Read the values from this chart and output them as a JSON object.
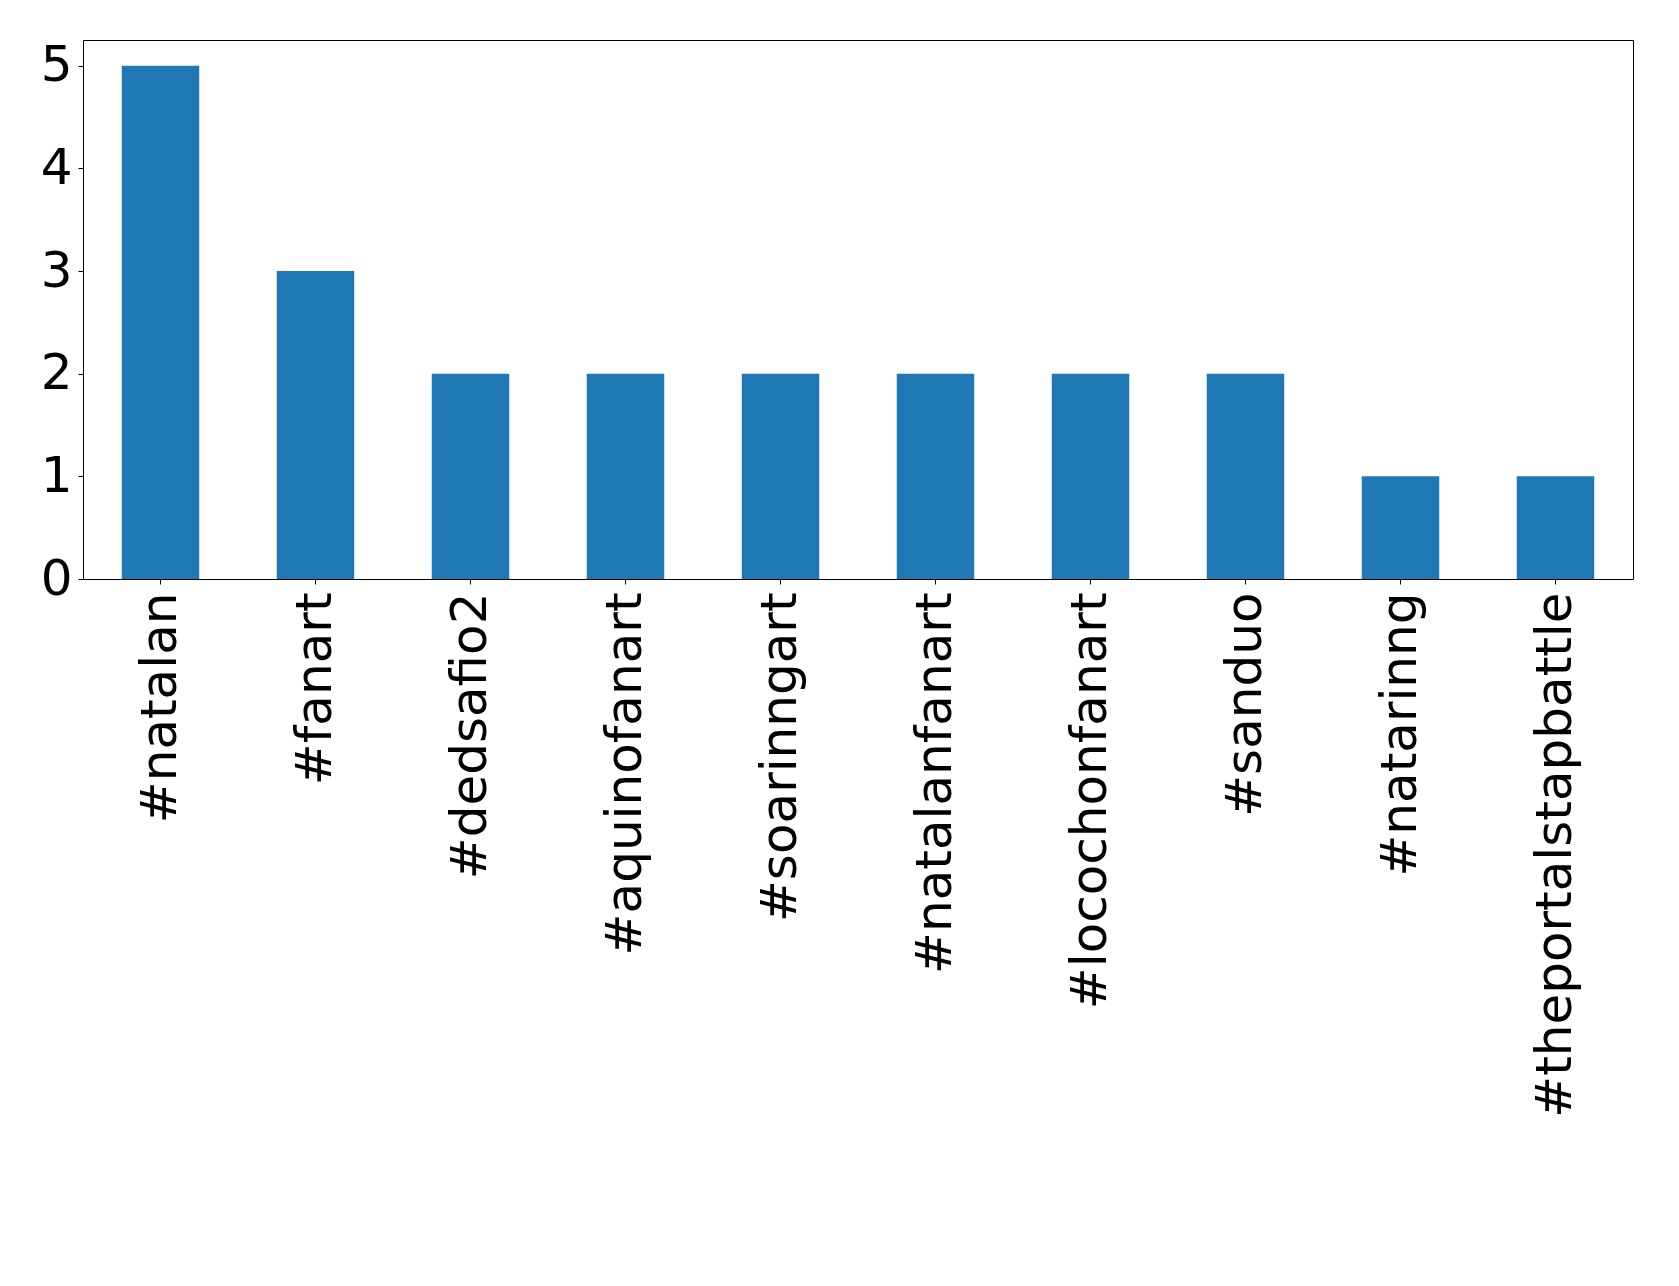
{
  "chart_data": {
    "type": "bar",
    "categories": [
      "#natalan",
      "#fanart",
      "#dedsafio2",
      "#aquinofanart",
      "#soarinngart",
      "#natalanfanart",
      "#locochonfanart",
      "#sanduo",
      "#natarinng",
      "#theportalstapbattle"
    ],
    "values": [
      5,
      3,
      2,
      2,
      2,
      2,
      2,
      2,
      1,
      1
    ],
    "color": "#1f77b4",
    "ylim": [
      0,
      5.25
    ],
    "yticks": [
      0,
      1,
      2,
      3,
      4,
      5
    ],
    "grid": false
  }
}
